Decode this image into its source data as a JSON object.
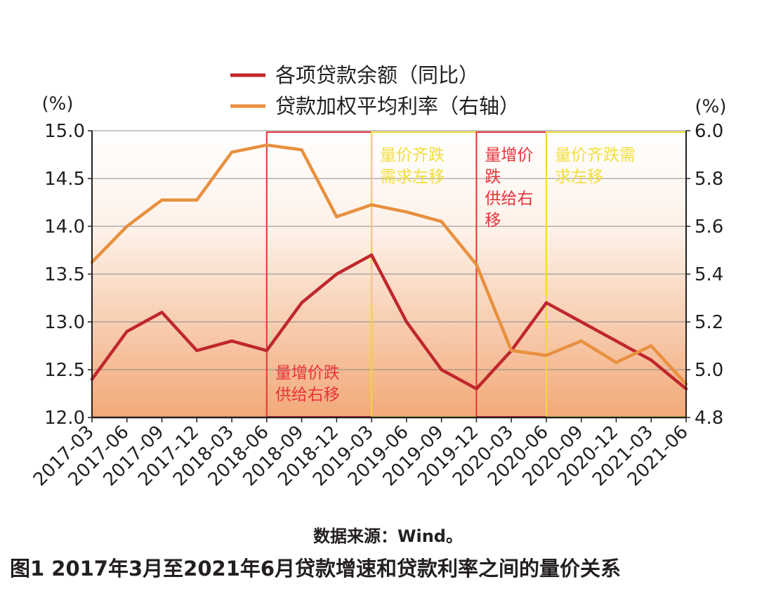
{
  "chart_data": {
    "type": "line",
    "title": "",
    "categories": [
      "2017-03",
      "2017-06",
      "2017-09",
      "2017-12",
      "2018-03",
      "2018-06",
      "2018-09",
      "2018-12",
      "2019-03",
      "2019-06",
      "2019-09",
      "2019-12",
      "2020-03",
      "2020-06",
      "2020-09",
      "2020-12",
      "2021-03",
      "2021-06"
    ],
    "series": [
      {
        "name": "各项贷款余额（同比）",
        "axis": "left",
        "color": "#c0272d",
        "values": [
          12.4,
          12.9,
          13.1,
          12.7,
          12.8,
          12.7,
          13.2,
          13.5,
          13.7,
          13.0,
          12.5,
          12.3,
          12.7,
          13.2,
          13.0,
          12.8,
          12.6,
          12.3
        ]
      },
      {
        "name": "贷款加权平均利率（右轴）",
        "axis": "right",
        "color": "#e8903f",
        "values": [
          5.45,
          5.6,
          5.71,
          5.71,
          5.91,
          5.94,
          5.92,
          5.64,
          5.69,
          5.66,
          5.62,
          5.44,
          5.08,
          5.06,
          5.12,
          5.03,
          5.1,
          4.94
        ]
      }
    ],
    "y_left": {
      "unit": "(%)",
      "min": 12.0,
      "max": 15.0,
      "ticks": [
        "12.0",
        "12.5",
        "13.0",
        "13.5",
        "14.0",
        "14.5",
        "15.0"
      ]
    },
    "y_right": {
      "unit": "(%)",
      "min": 4.8,
      "max": 6.0,
      "ticks": [
        "4.8",
        "5.0",
        "5.2",
        "5.4",
        "5.6",
        "5.8",
        "6.0"
      ]
    },
    "legend_position": "top",
    "grid": "horizontal",
    "regions": [
      {
        "from": "2018-06",
        "to": "2019-03",
        "color": "#e8333c",
        "label": [
          "量增价跌",
          "供给右移"
        ],
        "label_position": "bottom"
      },
      {
        "from": "2019-03",
        "to": "2019-12",
        "color": "#f2df3a",
        "label": [
          "量价齐跌",
          "需求左移"
        ],
        "label_position": "top"
      },
      {
        "from": "2019-12",
        "to": "2020-06",
        "color": "#e8333c",
        "label": [
          "量增价",
          "跌",
          "供给右",
          "移"
        ],
        "label_position": "top"
      },
      {
        "from": "2020-06",
        "to": "2021-06",
        "color": "#f2df3a",
        "label": [
          "量价齐跌需",
          "求左移"
        ],
        "label_position": "top"
      }
    ]
  },
  "source_text": "数据来源：Wind。",
  "caption": "图1  2017年3月至2021年6月贷款增速和贷款利率之间的量价关系"
}
